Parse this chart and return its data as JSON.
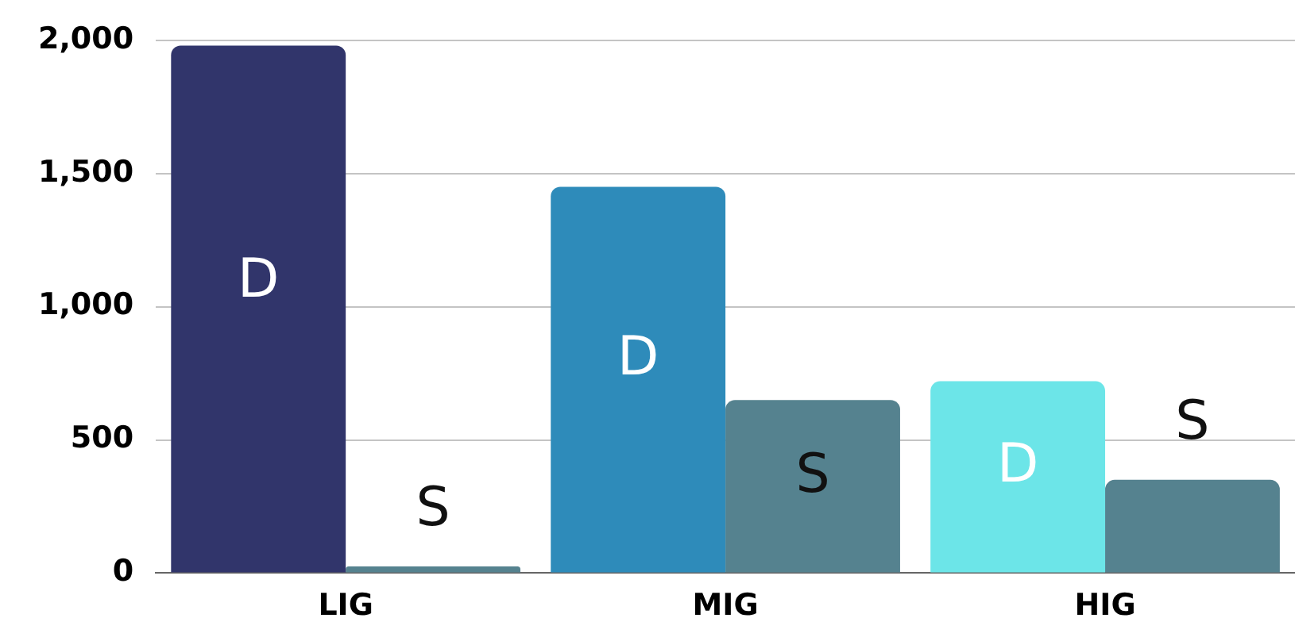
{
  "chart_data": {
    "type": "bar",
    "categories": [
      "LIG",
      "MIG",
      "HIG"
    ],
    "series": [
      {
        "name": "D",
        "colors": [
          "#31356b",
          "#2e8bba",
          "#6ce5e8"
        ],
        "values": [
          1980,
          1450,
          720
        ]
      },
      {
        "name": "S",
        "color": "#55828f",
        "values": [
          25,
          650,
          350
        ]
      }
    ],
    "ylim": [
      0,
      2000
    ],
    "yticks": [
      {
        "value": 0,
        "label": "0"
      },
      {
        "value": 500,
        "label": "500"
      },
      {
        "value": 1000,
        "label": "1,000"
      },
      {
        "value": 1500,
        "label": "1,500"
      },
      {
        "value": 2000,
        "label": "2,000"
      }
    ],
    "grid": "y",
    "legend": false
  }
}
